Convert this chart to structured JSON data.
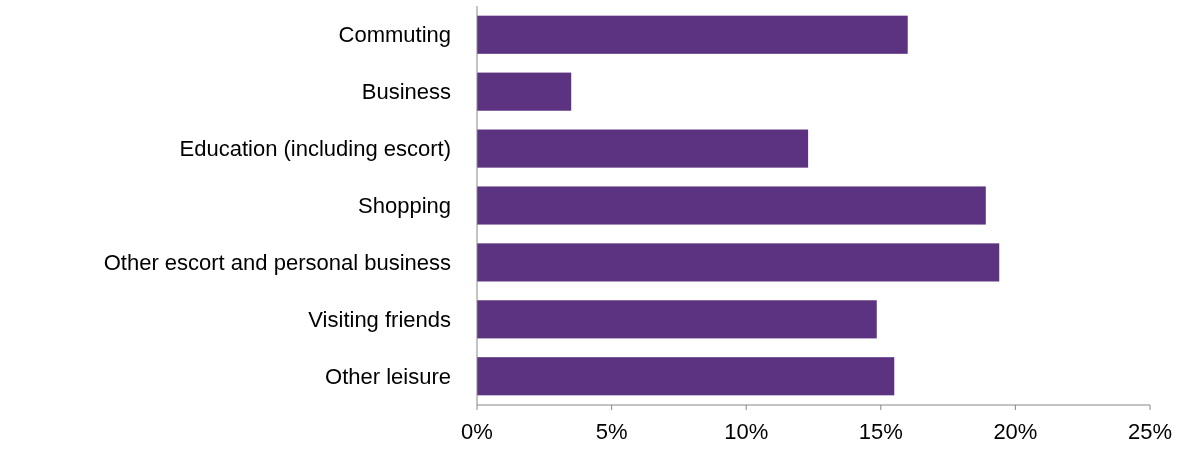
{
  "chart_data": {
    "type": "bar",
    "orientation": "horizontal",
    "categories": [
      "Commuting",
      "Business",
      "Education (including escort)",
      "Shopping",
      "Other escort and personal business",
      "Visiting friends",
      "Other leisure"
    ],
    "values": [
      16.0,
      3.5,
      12.3,
      18.9,
      19.4,
      14.85,
      15.5
    ],
    "color": "#5c3380",
    "xlim": [
      0,
      25
    ],
    "xticks": [
      {
        "value": 0,
        "label": "0%"
      },
      {
        "value": 5,
        "label": "5%"
      },
      {
        "value": 10,
        "label": "10%"
      },
      {
        "value": 15,
        "label": "15%"
      },
      {
        "value": 20,
        "label": "20%"
      },
      {
        "value": 25,
        "label": "25%"
      }
    ],
    "grid": false
  }
}
